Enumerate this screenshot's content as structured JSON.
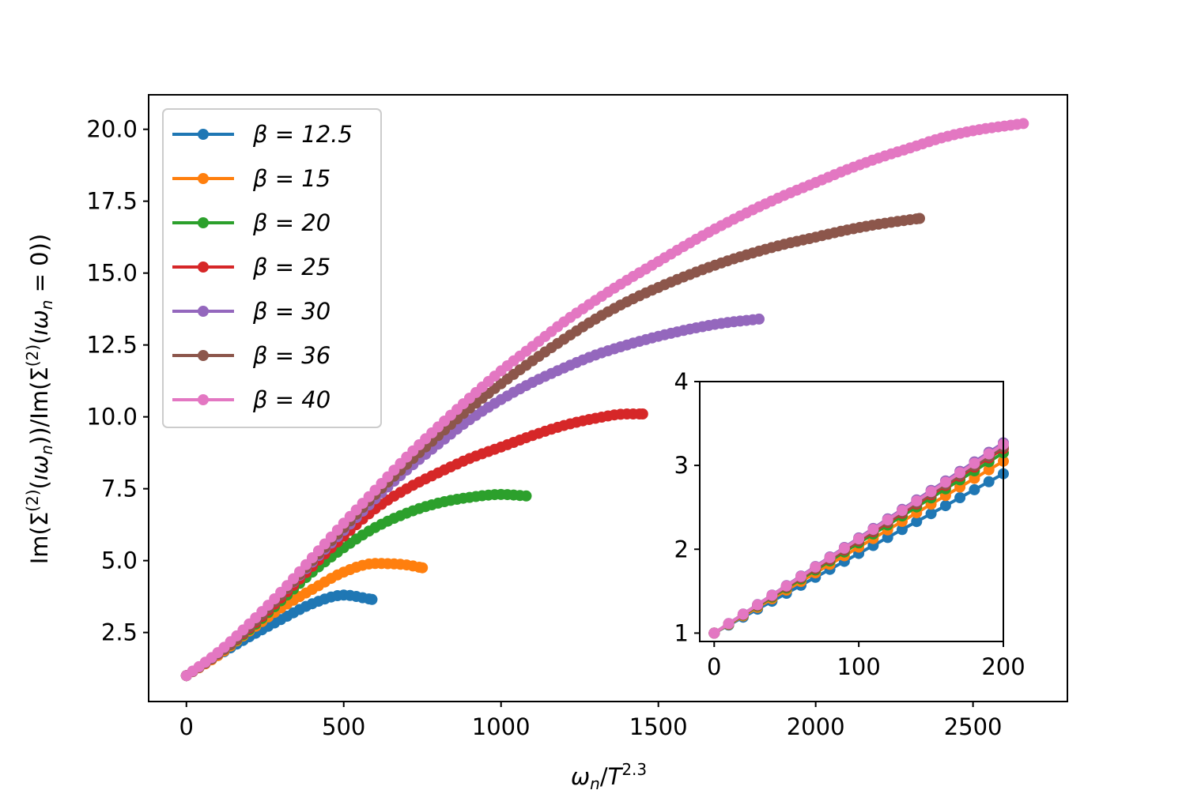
{
  "chart_data": [
    {
      "type": "line",
      "role": "main",
      "xlabel": "ωn/T^2.3",
      "ylabel": "Im(Σ(2)(ıωn))/Im(Σ(2)(ıωn=0))",
      "xlim": [
        -120,
        2800
      ],
      "ylim": [
        0.1,
        21.2
      ],
      "xticks": [
        0,
        500,
        1000,
        1500,
        2000,
        2500
      ],
      "yticks": [
        2.5,
        5.0,
        7.5,
        10.0,
        12.5,
        15.0,
        17.5,
        20.0
      ],
      "xtick_labels": [
        "0",
        "500",
        "1000",
        "1500",
        "2000",
        "2500"
      ],
      "ytick_labels": [
        "2.5",
        "5.0",
        "7.5",
        "10.0",
        "12.5",
        "15.0",
        "17.5",
        "20.0"
      ],
      "legend_position": "upper-left",
      "series": [
        {
          "name": "β = 12.5",
          "beta": "12.5",
          "color": "#1f77b4",
          "x_end": 590,
          "points": [
            [
              0,
              1.0
            ],
            [
              100,
              1.7
            ],
            [
              200,
              2.35
            ],
            [
              300,
              2.95
            ],
            [
              400,
              3.5
            ],
            [
              500,
              3.8
            ],
            [
              590,
              3.65
            ]
          ]
        },
        {
          "name": "β = 15",
          "beta": "15",
          "color": "#ff7f0e",
          "x_end": 750,
          "points": [
            [
              0,
              1.0
            ],
            [
              100,
              1.7
            ],
            [
              200,
              2.55
            ],
            [
              300,
              3.35
            ],
            [
              400,
              4.0
            ],
            [
              500,
              4.6
            ],
            [
              600,
              4.9
            ],
            [
              700,
              4.85
            ],
            [
              750,
              4.75
            ]
          ]
        },
        {
          "name": "β = 20",
          "beta": "20",
          "color": "#2ca02c",
          "x_end": 1080,
          "points": [
            [
              0,
              1.0
            ],
            [
              100,
              1.75
            ],
            [
              200,
              2.6
            ],
            [
              300,
              3.6
            ],
            [
              400,
              4.6
            ],
            [
              500,
              5.45
            ],
            [
              600,
              6.15
            ],
            [
              700,
              6.65
            ],
            [
              800,
              7.0
            ],
            [
              900,
              7.2
            ],
            [
              1000,
              7.3
            ],
            [
              1080,
              7.25
            ]
          ]
        },
        {
          "name": "β = 25",
          "beta": "25",
          "color": "#d62728",
          "x_end": 1450,
          "points": [
            [
              0,
              1.0
            ],
            [
              100,
              1.75
            ],
            [
              200,
              2.65
            ],
            [
              300,
              3.7
            ],
            [
              400,
              4.8
            ],
            [
              500,
              5.85
            ],
            [
              600,
              6.8
            ],
            [
              700,
              7.5
            ],
            [
              800,
              8.05
            ],
            [
              900,
              8.55
            ],
            [
              1000,
              8.95
            ],
            [
              1100,
              9.35
            ],
            [
              1200,
              9.7
            ],
            [
              1300,
              9.95
            ],
            [
              1400,
              10.1
            ],
            [
              1450,
              10.1
            ]
          ]
        },
        {
          "name": "β = 30",
          "beta": "30",
          "color": "#9467bd",
          "x_end": 1820,
          "points": [
            [
              0,
              1.0
            ],
            [
              100,
              1.75
            ],
            [
              200,
              2.7
            ],
            [
              300,
              3.8
            ],
            [
              400,
              4.95
            ],
            [
              500,
              6.05
            ],
            [
              600,
              7.15
            ],
            [
              700,
              8.15
            ],
            [
              800,
              9.05
            ],
            [
              900,
              9.9
            ],
            [
              1000,
              10.6
            ],
            [
              1100,
              11.2
            ],
            [
              1200,
              11.7
            ],
            [
              1300,
              12.15
            ],
            [
              1400,
              12.5
            ],
            [
              1500,
              12.8
            ],
            [
              1600,
              13.05
            ],
            [
              1700,
              13.25
            ],
            [
              1820,
              13.4
            ]
          ]
        },
        {
          "name": "β = 36",
          "beta": "36",
          "color": "#8c564b",
          "x_end": 2330,
          "points": [
            [
              0,
              1.0
            ],
            [
              100,
              1.75
            ],
            [
              200,
              2.7
            ],
            [
              300,
              3.8
            ],
            [
              400,
              5.0
            ],
            [
              500,
              6.15
            ],
            [
              600,
              7.3
            ],
            [
              700,
              8.35
            ],
            [
              800,
              9.35
            ],
            [
              900,
              10.3
            ],
            [
              1000,
              11.15
            ],
            [
              1100,
              11.95
            ],
            [
              1200,
              12.7
            ],
            [
              1300,
              13.4
            ],
            [
              1400,
              14.0
            ],
            [
              1500,
              14.5
            ],
            [
              1600,
              14.95
            ],
            [
              1700,
              15.35
            ],
            [
              1800,
              15.7
            ],
            [
              1900,
              16.0
            ],
            [
              2000,
              16.25
            ],
            [
              2100,
              16.5
            ],
            [
              2200,
              16.7
            ],
            [
              2330,
              16.9
            ]
          ]
        },
        {
          "name": "β = 40",
          "beta": "40",
          "color": "#e377c2",
          "x_end": 2660,
          "points": [
            [
              0,
              1.0
            ],
            [
              100,
              1.8
            ],
            [
              200,
              2.8
            ],
            [
              300,
              3.9
            ],
            [
              400,
              5.1
            ],
            [
              500,
              6.3
            ],
            [
              600,
              7.45
            ],
            [
              700,
              8.6
            ],
            [
              800,
              9.65
            ],
            [
              900,
              10.65
            ],
            [
              1000,
              11.6
            ],
            [
              1100,
              12.45
            ],
            [
              1200,
              13.3
            ],
            [
              1300,
              14.05
            ],
            [
              1400,
              14.75
            ],
            [
              1500,
              15.4
            ],
            [
              1600,
              16.05
            ],
            [
              1700,
              16.65
            ],
            [
              1800,
              17.2
            ],
            [
              1900,
              17.7
            ],
            [
              2000,
              18.15
            ],
            [
              2100,
              18.6
            ],
            [
              2200,
              19.0
            ],
            [
              2300,
              19.35
            ],
            [
              2400,
              19.7
            ],
            [
              2500,
              19.95
            ],
            [
              2660,
              20.2
            ]
          ]
        }
      ]
    },
    {
      "type": "line",
      "role": "inset",
      "xlim": [
        -10,
        200
      ],
      "ylim": [
        0.9,
        4.0
      ],
      "xticks": [
        0,
        100,
        200
      ],
      "yticks": [
        1,
        2,
        3,
        4
      ],
      "xtick_labels": [
        "0",
        "100",
        "200"
      ],
      "ytick_labels": [
        "1",
        "2",
        "3",
        "4"
      ],
      "series": [
        {
          "name": "β = 12.5",
          "color": "#1f77b4",
          "points": [
            [
              0,
              1.0
            ],
            [
              200,
              2.9
            ]
          ]
        },
        {
          "name": "β = 15",
          "color": "#ff7f0e",
          "points": [
            [
              0,
              1.0
            ],
            [
              200,
              3.05
            ]
          ]
        },
        {
          "name": "β = 20",
          "color": "#2ca02c",
          "points": [
            [
              0,
              1.0
            ],
            [
              200,
              3.15
            ]
          ]
        },
        {
          "name": "β = 25",
          "color": "#d62728",
          "points": [
            [
              0,
              1.0
            ],
            [
              200,
              3.2
            ]
          ]
        },
        {
          "name": "β = 30",
          "color": "#9467bd",
          "points": [
            [
              0,
              1.0
            ],
            [
              200,
              3.27
            ]
          ]
        },
        {
          "name": "β = 36",
          "color": "#8c564b",
          "points": [
            [
              0,
              1.0
            ],
            [
              200,
              3.22
            ]
          ]
        },
        {
          "name": "β = 40",
          "color": "#e377c2",
          "points": [
            [
              0,
              1.0
            ],
            [
              200,
              3.25
            ]
          ]
        }
      ]
    }
  ]
}
